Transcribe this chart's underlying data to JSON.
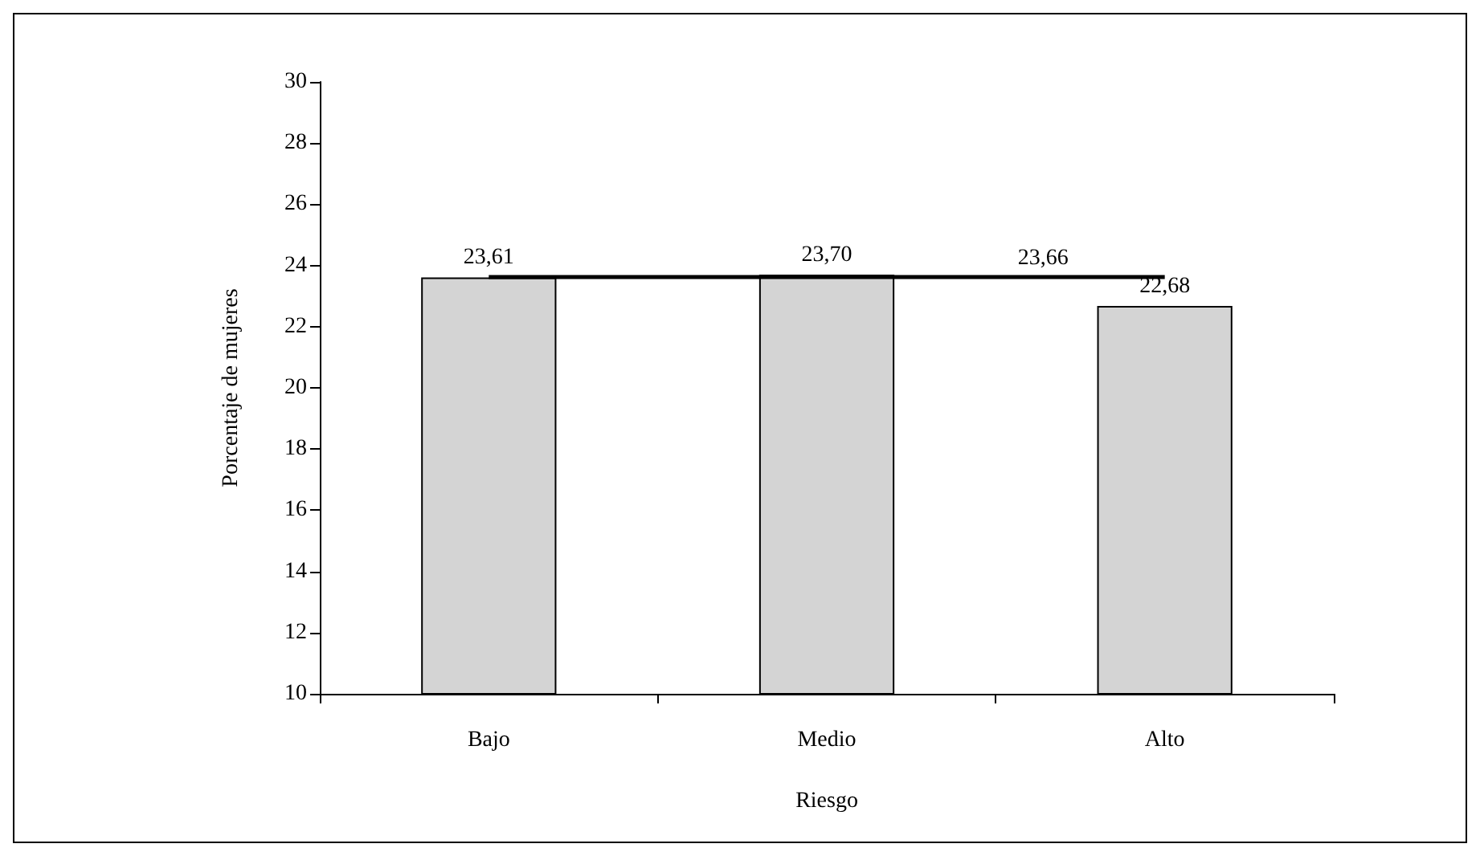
{
  "chart_data": {
    "type": "bar",
    "xlabel": "Riesgo",
    "ylabel": "Porcentaje de mujeres",
    "categories": [
      "Bajo",
      "Medio",
      "Alto"
    ],
    "values": [
      23.61,
      23.7,
      22.68
    ],
    "value_labels": [
      "23,61",
      "23,70",
      "22,68"
    ],
    "color": "#d4d4d4",
    "ylim": [
      10,
      30
    ],
    "yticks": [
      10,
      12,
      14,
      16,
      18,
      20,
      22,
      24,
      26,
      28,
      30
    ],
    "ref_lines": [
      {
        "axis": "y",
        "value": 23.66,
        "label": "23,66",
        "color": "#000000"
      }
    ],
    "grid": false
  }
}
